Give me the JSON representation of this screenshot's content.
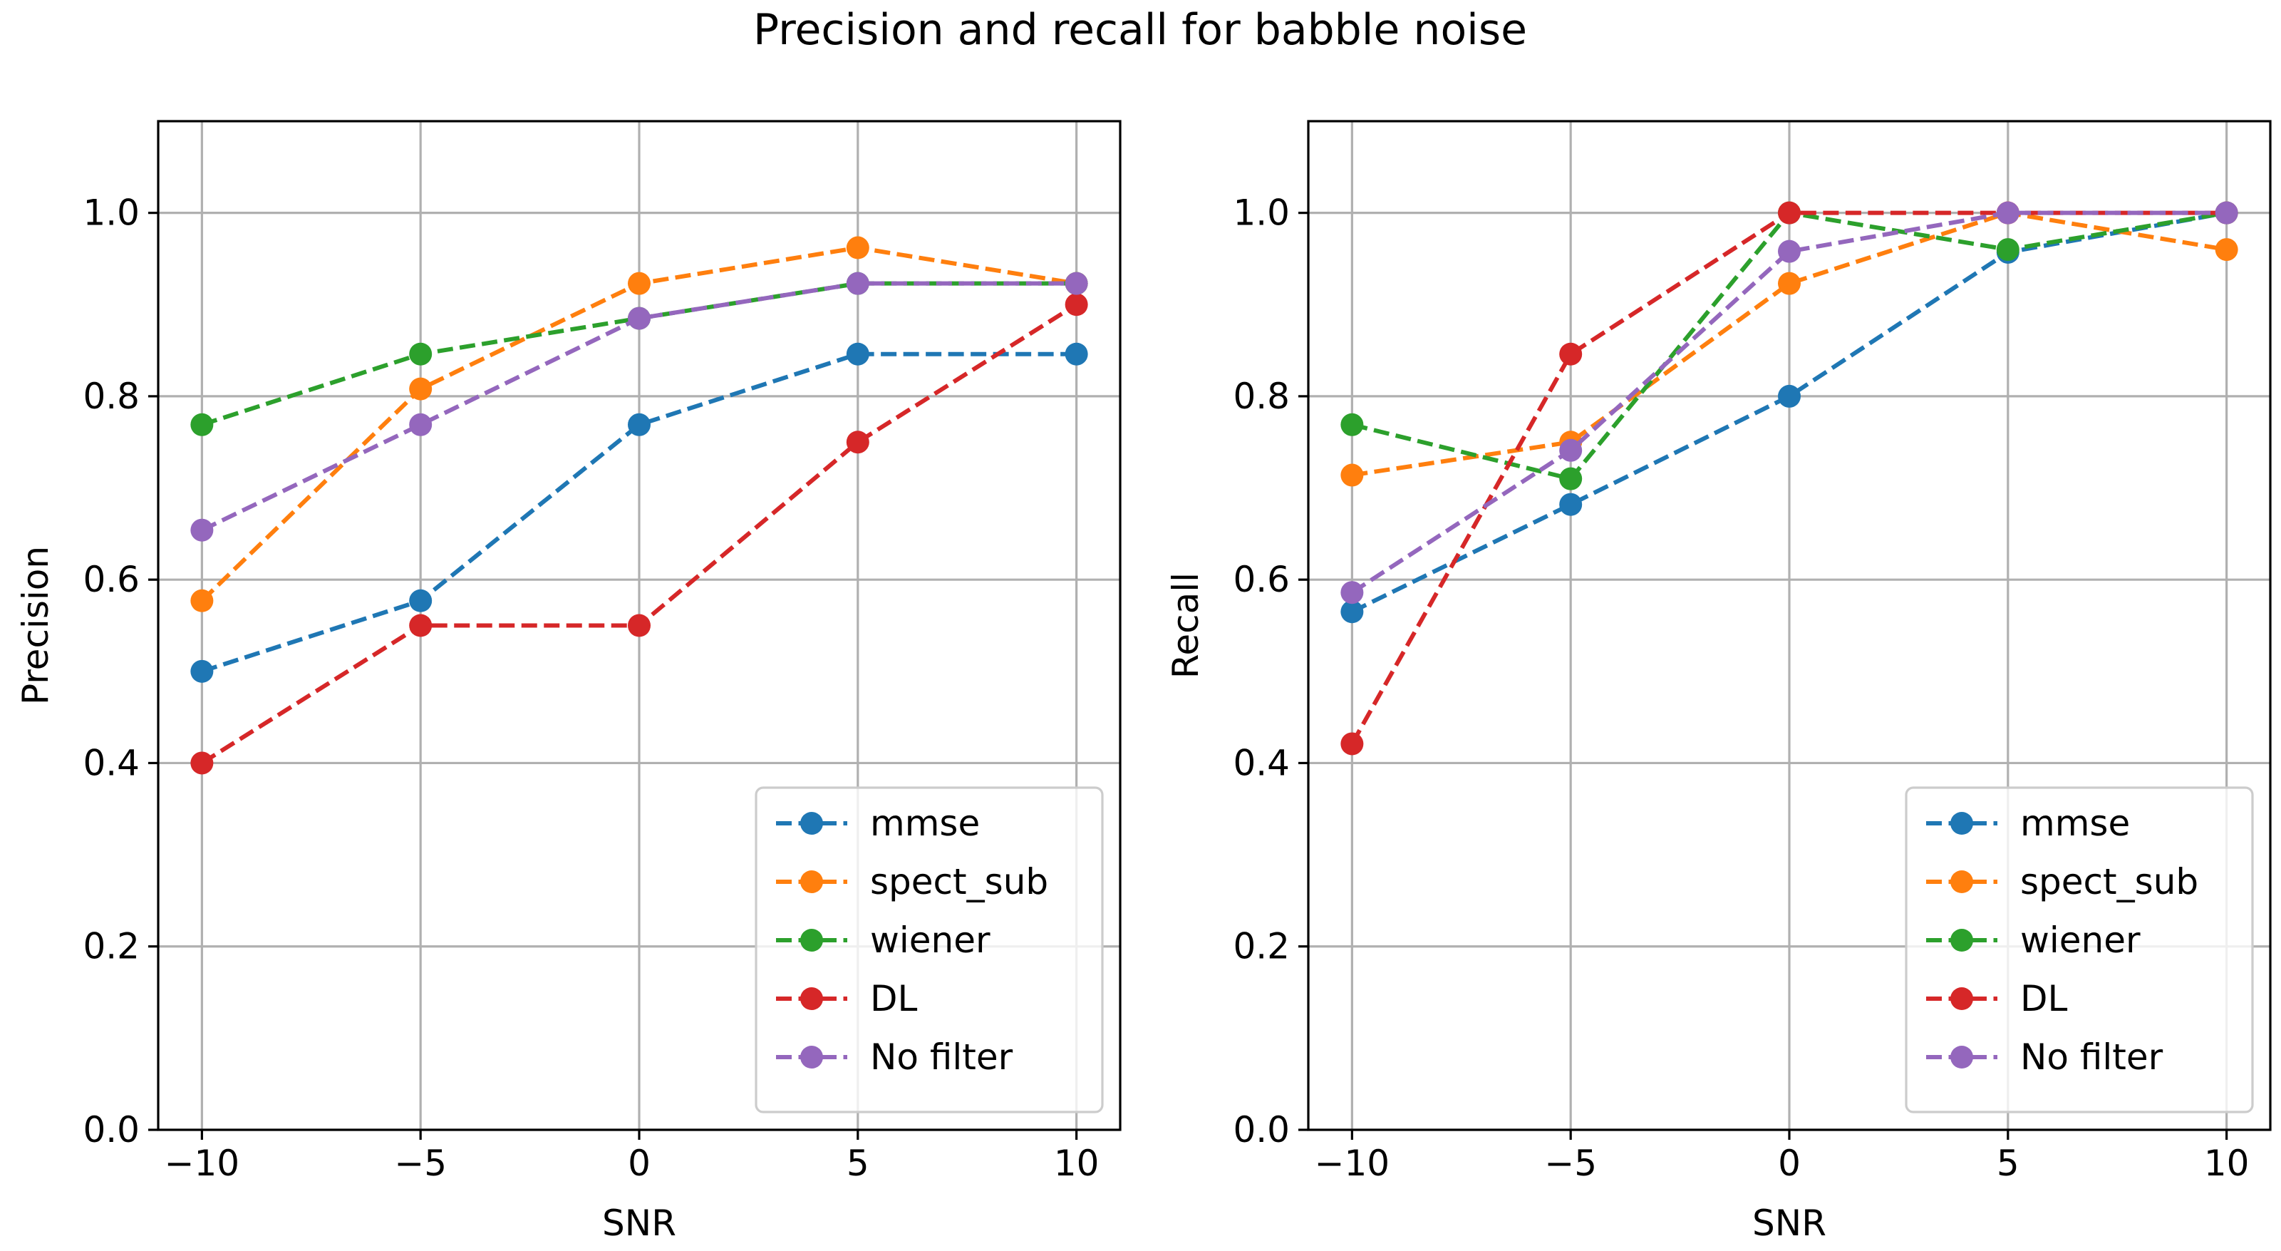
{
  "suptitle": "Precision and recall for babble noise",
  "chart_data": [
    {
      "type": "line",
      "xlabel": "SNR",
      "ylabel": "Precision",
      "xlim": [
        -11,
        11
      ],
      "ylim": [
        0.0,
        1.1
      ],
      "xticks": [
        -10,
        -5,
        0,
        5,
        10
      ],
      "xtick_labels": [
        "−10",
        "−5",
        "0",
        "5",
        "10"
      ],
      "yticks": [
        0.0,
        0.2,
        0.4,
        0.6,
        0.8,
        1.0
      ],
      "ytick_labels": [
        "0.0",
        "0.2",
        "0.4",
        "0.6",
        "0.8",
        "1.0"
      ],
      "grid": true,
      "legend_position": "lower-right",
      "x": [
        -10,
        -5,
        0,
        5,
        10
      ],
      "series": [
        {
          "name": "mmse",
          "color": "#1f77b4",
          "values": [
            0.5,
            0.577,
            0.769,
            0.846,
            0.846
          ]
        },
        {
          "name": "spect_sub",
          "color": "#ff7f0e",
          "values": [
            0.577,
            0.808,
            0.923,
            0.962,
            0.923
          ]
        },
        {
          "name": "wiener",
          "color": "#2ca02c",
          "values": [
            0.769,
            0.846,
            0.885,
            0.923,
            0.923
          ]
        },
        {
          "name": "DL",
          "color": "#d62728",
          "values": [
            0.4,
            0.55,
            0.55,
            0.75,
            0.9
          ]
        },
        {
          "name": "No filter",
          "color": "#9467bd",
          "values": [
            0.654,
            0.769,
            0.885,
            0.923,
            0.923
          ]
        }
      ]
    },
    {
      "type": "line",
      "xlabel": "SNR",
      "ylabel": "Recall",
      "xlim": [
        -11,
        11
      ],
      "ylim": [
        0.0,
        1.1
      ],
      "xticks": [
        -10,
        -5,
        0,
        5,
        10
      ],
      "xtick_labels": [
        "−10",
        "−5",
        "0",
        "5",
        "10"
      ],
      "yticks": [
        0.0,
        0.2,
        0.4,
        0.6,
        0.8,
        1.0
      ],
      "ytick_labels": [
        "0.0",
        "0.2",
        "0.4",
        "0.6",
        "0.8",
        "1.0"
      ],
      "grid": true,
      "legend_position": "lower-right",
      "x": [
        -10,
        -5,
        0,
        5,
        10
      ],
      "series": [
        {
          "name": "mmse",
          "color": "#1f77b4",
          "values": [
            0.565,
            0.682,
            0.8,
            0.957,
            1.0
          ]
        },
        {
          "name": "spect_sub",
          "color": "#ff7f0e",
          "values": [
            0.714,
            0.75,
            0.923,
            1.0,
            0.96
          ]
        },
        {
          "name": "wiener",
          "color": "#2ca02c",
          "values": [
            0.769,
            0.71,
            1.0,
            0.96,
            1.0
          ]
        },
        {
          "name": "DL",
          "color": "#d62728",
          "values": [
            0.421,
            0.846,
            1.0,
            1.0,
            1.0
          ]
        },
        {
          "name": "No filter",
          "color": "#9467bd",
          "values": [
            0.586,
            0.741,
            0.958,
            1.0,
            1.0
          ]
        }
      ]
    }
  ]
}
